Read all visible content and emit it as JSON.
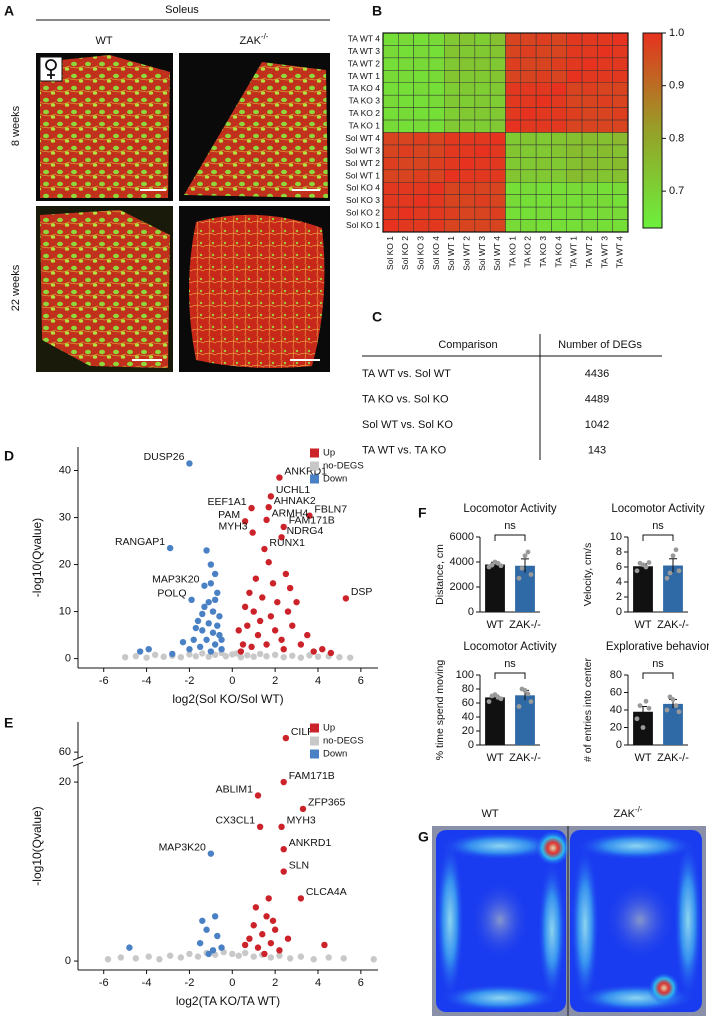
{
  "panel_labels": [
    "A",
    "B",
    "C",
    "D",
    "E",
    "F",
    "G"
  ],
  "panel_a": {
    "header": "Soleus",
    "columns": [
      {
        "text": "WT"
      },
      {
        "text": "ZAK",
        "sup": "-/-"
      }
    ],
    "rows": [
      "8 weeks",
      "22 weeks"
    ]
  },
  "table_c": {
    "header": [
      "Comparison",
      "Number of DEGs"
    ],
    "rows": [
      [
        "TA WT vs. Sol WT",
        4436
      ],
      [
        "TA KO vs. Sol KO",
        4489
      ],
      [
        "Sol WT vs. Sol KO",
        1042
      ],
      [
        "TA WT vs. TA KO",
        143
      ]
    ]
  },
  "panel_g": {
    "columns": [
      {
        "text": "WT"
      },
      {
        "text": "ZAK",
        "sup": "-/-"
      }
    ]
  },
  "chart_data": [
    {
      "type": "heatmap",
      "rows": [
        "TA WT 4",
        "TA WT 3",
        "TA WT 2",
        "TA WT 1",
        "TA KO 4",
        "TA KO 3",
        "TA KO 2",
        "TA KO 1",
        "Sol WT 4",
        "Sol WT 3",
        "Sol WT 2",
        "Sol WT 1",
        "Sol KO 4",
        "Sol KO 3",
        "Sol KO 2",
        "Sol KO 1"
      ],
      "columns": [
        "Sol KO 1",
        "Sol KO 2",
        "Sol KO 3",
        "Sol KO 4",
        "Sol WT 1",
        "Sol WT 2",
        "Sol WT 3",
        "Sol WT 4",
        "TA KO 1",
        "TA KO 2",
        "TA KO 3",
        "TA KO 4",
        "TA WT 1",
        "TA WT 2",
        "TA WT 3",
        "TA WT 4"
      ],
      "values": [
        [
          0.67,
          0.68,
          0.67,
          0.68,
          0.72,
          0.73,
          0.71,
          0.74,
          0.97,
          0.97,
          0.98,
          0.97,
          0.99,
          0.99,
          0.99,
          1.0
        ],
        [
          0.68,
          0.67,
          0.68,
          0.67,
          0.73,
          0.72,
          0.72,
          0.73,
          0.97,
          0.98,
          0.97,
          0.97,
          0.99,
          0.99,
          1.0,
          0.99
        ],
        [
          0.67,
          0.68,
          0.68,
          0.68,
          0.72,
          0.73,
          0.73,
          0.72,
          0.98,
          0.97,
          0.97,
          0.98,
          0.99,
          1.0,
          0.99,
          0.99
        ],
        [
          0.68,
          0.68,
          0.67,
          0.68,
          0.73,
          0.72,
          0.72,
          0.73,
          0.97,
          0.97,
          0.98,
          0.97,
          1.0,
          0.99,
          0.99,
          0.99
        ],
        [
          0.67,
          0.67,
          0.68,
          0.67,
          0.71,
          0.72,
          0.71,
          0.72,
          0.99,
          0.99,
          0.99,
          1.0,
          0.97,
          0.98,
          0.97,
          0.97
        ],
        [
          0.68,
          0.67,
          0.67,
          0.68,
          0.72,
          0.71,
          0.72,
          0.71,
          0.99,
          0.99,
          1.0,
          0.99,
          0.97,
          0.97,
          0.98,
          0.97
        ],
        [
          0.67,
          0.68,
          0.67,
          0.67,
          0.71,
          0.72,
          0.72,
          0.72,
          0.99,
          1.0,
          0.99,
          0.99,
          0.98,
          0.97,
          0.97,
          0.98
        ],
        [
          0.68,
          0.67,
          0.68,
          0.67,
          0.72,
          0.71,
          0.71,
          0.72,
          1.0,
          0.99,
          0.99,
          0.99,
          0.97,
          0.97,
          0.97,
          0.97
        ],
        [
          0.97,
          0.97,
          0.98,
          0.97,
          0.99,
          0.99,
          0.99,
          1.0,
          0.72,
          0.73,
          0.72,
          0.73,
          0.74,
          0.75,
          0.74,
          0.76
        ],
        [
          0.97,
          0.98,
          0.97,
          0.97,
          0.99,
          0.99,
          1.0,
          0.99,
          0.73,
          0.72,
          0.72,
          0.73,
          0.75,
          0.74,
          0.75,
          0.74
        ],
        [
          0.98,
          0.97,
          0.97,
          0.98,
          0.99,
          1.0,
          0.99,
          0.99,
          0.72,
          0.72,
          0.73,
          0.72,
          0.74,
          0.75,
          0.74,
          0.75
        ],
        [
          0.97,
          0.97,
          0.98,
          0.97,
          1.0,
          0.99,
          0.99,
          0.99,
          0.73,
          0.72,
          0.72,
          0.72,
          0.75,
          0.74,
          0.73,
          0.74
        ],
        [
          0.99,
          0.99,
          0.99,
          1.0,
          0.97,
          0.98,
          0.97,
          0.97,
          0.67,
          0.68,
          0.67,
          0.67,
          0.68,
          0.68,
          0.67,
          0.68
        ],
        [
          0.99,
          0.99,
          1.0,
          0.99,
          0.97,
          0.97,
          0.98,
          0.97,
          0.68,
          0.67,
          0.67,
          0.68,
          0.67,
          0.68,
          0.68,
          0.67
        ],
        [
          0.99,
          1.0,
          0.99,
          0.99,
          0.98,
          0.97,
          0.97,
          0.98,
          0.67,
          0.67,
          0.68,
          0.67,
          0.68,
          0.67,
          0.68,
          0.68
        ],
        [
          1.0,
          0.99,
          0.99,
          0.99,
          0.97,
          0.97,
          0.97,
          0.97,
          0.68,
          0.68,
          0.67,
          0.67,
          0.67,
          0.68,
          0.67,
          0.67
        ]
      ],
      "colormap": [
        "#6cf03c",
        "#96a028",
        "#e6321e"
      ],
      "clim": [
        0.63,
        1.0
      ],
      "cticks": [
        {
          "value": 1.0,
          "label": "1.0"
        },
        0.9,
        0.8,
        0.7
      ]
    },
    {
      "type": "scatter",
      "xlabel": "log2(Sol KO/Sol WT)",
      "ylabel": "-log10(Qvalue)",
      "xlim": [
        -7.2,
        6.8
      ],
      "xticks": [
        -6,
        -4,
        -2,
        0,
        2,
        4,
        6
      ],
      "ylim": [
        -2,
        45
      ],
      "yticks": [
        0,
        10,
        20,
        30,
        40
      ],
      "legend": "top-right",
      "series": [
        {
          "name": "Up",
          "color": "#cc2229",
          "x": [
            2.2,
            1.8,
            1.7,
            0.9,
            3.6,
            1.6,
            0.6,
            2.4,
            0.95,
            2.3,
            1.5,
            5.3,
            3.8,
            4.2,
            3.5,
            2.7,
            2.5,
            3.0,
            0.5,
            0.7,
            1.0,
            1.2,
            1.4,
            0.8,
            1.8,
            2.0,
            2.3,
            0.4,
            0.9,
            1.6,
            2.8,
            3.2,
            1.1,
            0.6,
            2.1,
            1.3,
            2.6,
            4.6,
            1.9,
            0.3,
            2.4,
            1.7
          ],
          "y": [
            38.5,
            34.5,
            32.2,
            32.0,
            30.4,
            29.5,
            29.2,
            28.0,
            26.8,
            25.8,
            23.3,
            12.8,
            1.5,
            2.0,
            5.0,
            15.0,
            18.0,
            12.0,
            3.0,
            7.0,
            10.0,
            5.0,
            13.0,
            14.0,
            9.0,
            6.0,
            4.0,
            1.5,
            2.5,
            3.0,
            7.0,
            3.0,
            17.0,
            11.0,
            12.0,
            8.0,
            10.0,
            1.2,
            16.0,
            6.0,
            2.0,
            20.5
          ],
          "labels": [
            "ANKRD1",
            "UCHL1",
            "AHNAK2",
            "EEF1A1",
            "FBLN7",
            "ARMH4",
            "PAM",
            "FAM171B",
            "MYH3",
            "NDRG4",
            "RUNX1",
            "DSP",
            null,
            null,
            null,
            null,
            null,
            null,
            null,
            null,
            null,
            null,
            null,
            null,
            null,
            null,
            null,
            null,
            null,
            null,
            null,
            null,
            null,
            null,
            null,
            null,
            null,
            null,
            null,
            null,
            null,
            null
          ]
        },
        {
          "name": "no-DEGS",
          "color": "#c8c8c8",
          "x": [
            -5.0,
            -4.5,
            -4.0,
            -3.6,
            -3.2,
            -2.8,
            -2.4,
            -2.0,
            -1.7,
            -1.4,
            -1.1,
            -0.8,
            -0.5,
            -0.3,
            0,
            0.2,
            0.4,
            0.7,
            1.0,
            1.3,
            1.6,
            2.0,
            2.4,
            2.8,
            3.2,
            3.6,
            4.0,
            4.5,
            5.0,
            5.5
          ],
          "y": [
            0.3,
            0.5,
            0.2,
            0.8,
            0.4,
            0.6,
            0.3,
            0.9,
            0.5,
            1.1,
            0.4,
            0.8,
            1.2,
            0.5,
            0.9,
            1.1,
            0.3,
            0.7,
            0.4,
            1.0,
            0.5,
            0.8,
            0.3,
            0.6,
            0.2,
            0.7,
            0.4,
            0.5,
            0.3,
            0.2
          ]
        },
        {
          "name": "Down",
          "color": "#4a80c4",
          "x": [
            -2.0,
            -2.9,
            -1.3,
            -1.9,
            -3.9,
            -4.3,
            -2.3,
            -1.0,
            -1.2,
            -0.8,
            -1.6,
            -1.1,
            -0.9,
            -0.7,
            -1.4,
            -0.6,
            -1.8,
            -1.2,
            -0.8,
            -0.5,
            -1.0,
            -2.0,
            -1.5,
            -0.7,
            -1.3,
            -0.9,
            -0.6,
            -1.7,
            -2.8,
            -1.1,
            -0.5,
            -1.4,
            -0.8,
            -1.0
          ],
          "y": [
            41.5,
            23.5,
            15.5,
            12.5,
            2.0,
            1.5,
            3.5,
            20.0,
            23.0,
            18.0,
            8.0,
            12.0,
            10.0,
            7.0,
            6.0,
            5.0,
            4.0,
            4.0,
            3.0,
            2.0,
            1.5,
            2.0,
            2.5,
            14.0,
            11.0,
            5.5,
            9.0,
            6.5,
            1.0,
            7.5,
            4.0,
            9.5,
            12.5,
            16.0
          ],
          "labels": [
            "DUSP26",
            "RANGAP1",
            "MAP3K20",
            "POLQ",
            null,
            null,
            null,
            null,
            null,
            null,
            null,
            null,
            null,
            null,
            null,
            null,
            null,
            null,
            null,
            null,
            null,
            null,
            null,
            null,
            null,
            null,
            null,
            null,
            null,
            null,
            null,
            null,
            null,
            null
          ]
        }
      ]
    },
    {
      "type": "scatter",
      "xlabel": "log2(TA KO/TA WT)",
      "ylabel": "-log10(Qvalue)",
      "xlim": [
        -7.2,
        6.8
      ],
      "xticks": [
        -6,
        -4,
        -2,
        0,
        2,
        4,
        6
      ],
      "ylim": [
        -1,
        75
      ],
      "ybreak": [
        22,
        57
      ],
      "yticks": [
        0,
        20,
        60
      ],
      "legend": "top-right",
      "series": [
        {
          "name": "Up",
          "color": "#cc2229",
          "x": [
            2.5,
            2.4,
            1.2,
            3.3,
            1.3,
            2.3,
            2.4,
            2.4,
            3.2,
            0.8,
            1.0,
            1.2,
            1.4,
            1.6,
            1.8,
            2.0,
            2.2,
            0.6,
            1.1,
            1.5,
            1.9,
            2.6,
            4.3,
            1.7
          ],
          "y": [
            67,
            20,
            18.5,
            17,
            15,
            15,
            12.5,
            10,
            7,
            2.5,
            4,
            1.5,
            3,
            5,
            2,
            3.5,
            1.2,
            1.8,
            6,
            0.8,
            4.5,
            2.5,
            1.8,
            7
          ],
          "labels": [
            "CILP",
            "FAM171B",
            "ABLIM1",
            "ZFP365",
            "CX3CL1",
            "MYH3",
            "ANKRD1",
            "SLN",
            "CLCA4A",
            null,
            null,
            null,
            null,
            null,
            null,
            null,
            null,
            null,
            null,
            null,
            null,
            null,
            null,
            null
          ]
        },
        {
          "name": "no-DEGS",
          "color": "#c8c8c8",
          "x": [
            -5.8,
            -5.2,
            -4.5,
            -3.9,
            -3.4,
            -2.9,
            -2.4,
            -2.0,
            -1.6,
            -1.2,
            -0.8,
            -0.4,
            0,
            0.3,
            0.6,
            1.0,
            1.4,
            1.8,
            2.2,
            2.7,
            3.2,
            3.8,
            4.5,
            5.2,
            6.6
          ],
          "y": [
            0.2,
            0.4,
            0.3,
            0.5,
            0.2,
            0.6,
            0.4,
            0.8,
            0.5,
            0.9,
            0.7,
            1.0,
            0.8,
            0.6,
            0.9,
            0.5,
            0.7,
            0.4,
            0.6,
            0.3,
            0.5,
            0.2,
            0.4,
            0.3,
            0.2
          ]
        },
        {
          "name": "Down",
          "color": "#4a80c4",
          "x": [
            -1.0,
            -4.8,
            -1.5,
            -1.2,
            -0.9,
            -0.7,
            -1.1,
            -0.5,
            -1.4,
            -0.8
          ],
          "y": [
            12,
            1.5,
            2,
            3.5,
            1.2,
            2.8,
            0.8,
            1.5,
            4.5,
            5
          ],
          "labels": [
            "MAP3K20",
            null,
            null,
            null,
            null,
            null,
            null,
            null,
            null,
            null
          ]
        }
      ]
    },
    {
      "type": "bar",
      "title": "Locomotor Activity",
      "ylabel": "Distance, cm",
      "categories": [
        "WT",
        "ZAK-/-"
      ],
      "values": [
        3800,
        3700
      ],
      "errors": [
        180,
        550
      ],
      "points": [
        [
          3600,
          3750,
          4000,
          3900,
          3700
        ],
        [
          2700,
          3500,
          4500,
          4800,
          3000
        ]
      ],
      "colors": [
        "#111111",
        "#2f6aa6"
      ],
      "ylim": [
        0,
        6000
      ],
      "yticks": [
        0,
        2000,
        4000,
        6000
      ],
      "annotation": "ns"
    },
    {
      "type": "bar",
      "title": "Locomotor Activity",
      "ylabel": "Velocity, cm/s",
      "categories": [
        "WT",
        "ZAK-/-"
      ],
      "values": [
        6.1,
        6.2
      ],
      "errors": [
        0.3,
        0.9
      ],
      "points": [
        [
          5.5,
          6.5,
          6.3,
          6.0,
          6.6
        ],
        [
          4.5,
          5.2,
          7.5,
          8.3,
          5.5
        ]
      ],
      "colors": [
        "#111111",
        "#2f6aa6"
      ],
      "ylim": [
        0,
        10
      ],
      "yticks": [
        0,
        2,
        4,
        6,
        8,
        10
      ],
      "annotation": "ns"
    },
    {
      "type": "bar",
      "title": "Locomotor Activity",
      "ylabel": "% time spend moving",
      "categories": [
        "WT",
        "ZAK-/-"
      ],
      "values": [
        68,
        71
      ],
      "errors": [
        3,
        7
      ],
      "points": [
        [
          62,
          70,
          72,
          68,
          66
        ],
        [
          55,
          80,
          78,
          73,
          62
        ]
      ],
      "colors": [
        "#111111",
        "#2f6aa6"
      ],
      "ylim": [
        0,
        100
      ],
      "yticks": [
        0,
        20,
        40,
        60,
        80,
        100
      ],
      "annotation": "ns"
    },
    {
      "type": "bar",
      "title": "Explorative behavior",
      "ylabel": "# of entries into center",
      "categories": [
        "WT",
        "ZAK-/-"
      ],
      "values": [
        38,
        47
      ],
      "errors": [
        6,
        5
      ],
      "points": [
        [
          30,
          45,
          20,
          50,
          42
        ],
        [
          40,
          55,
          52,
          45,
          38
        ]
      ],
      "colors": [
        "#111111",
        "#2f6aa6"
      ],
      "ylim": [
        0,
        80
      ],
      "yticks": [
        0,
        20,
        40,
        60,
        80
      ],
      "annotation": "ns"
    }
  ]
}
